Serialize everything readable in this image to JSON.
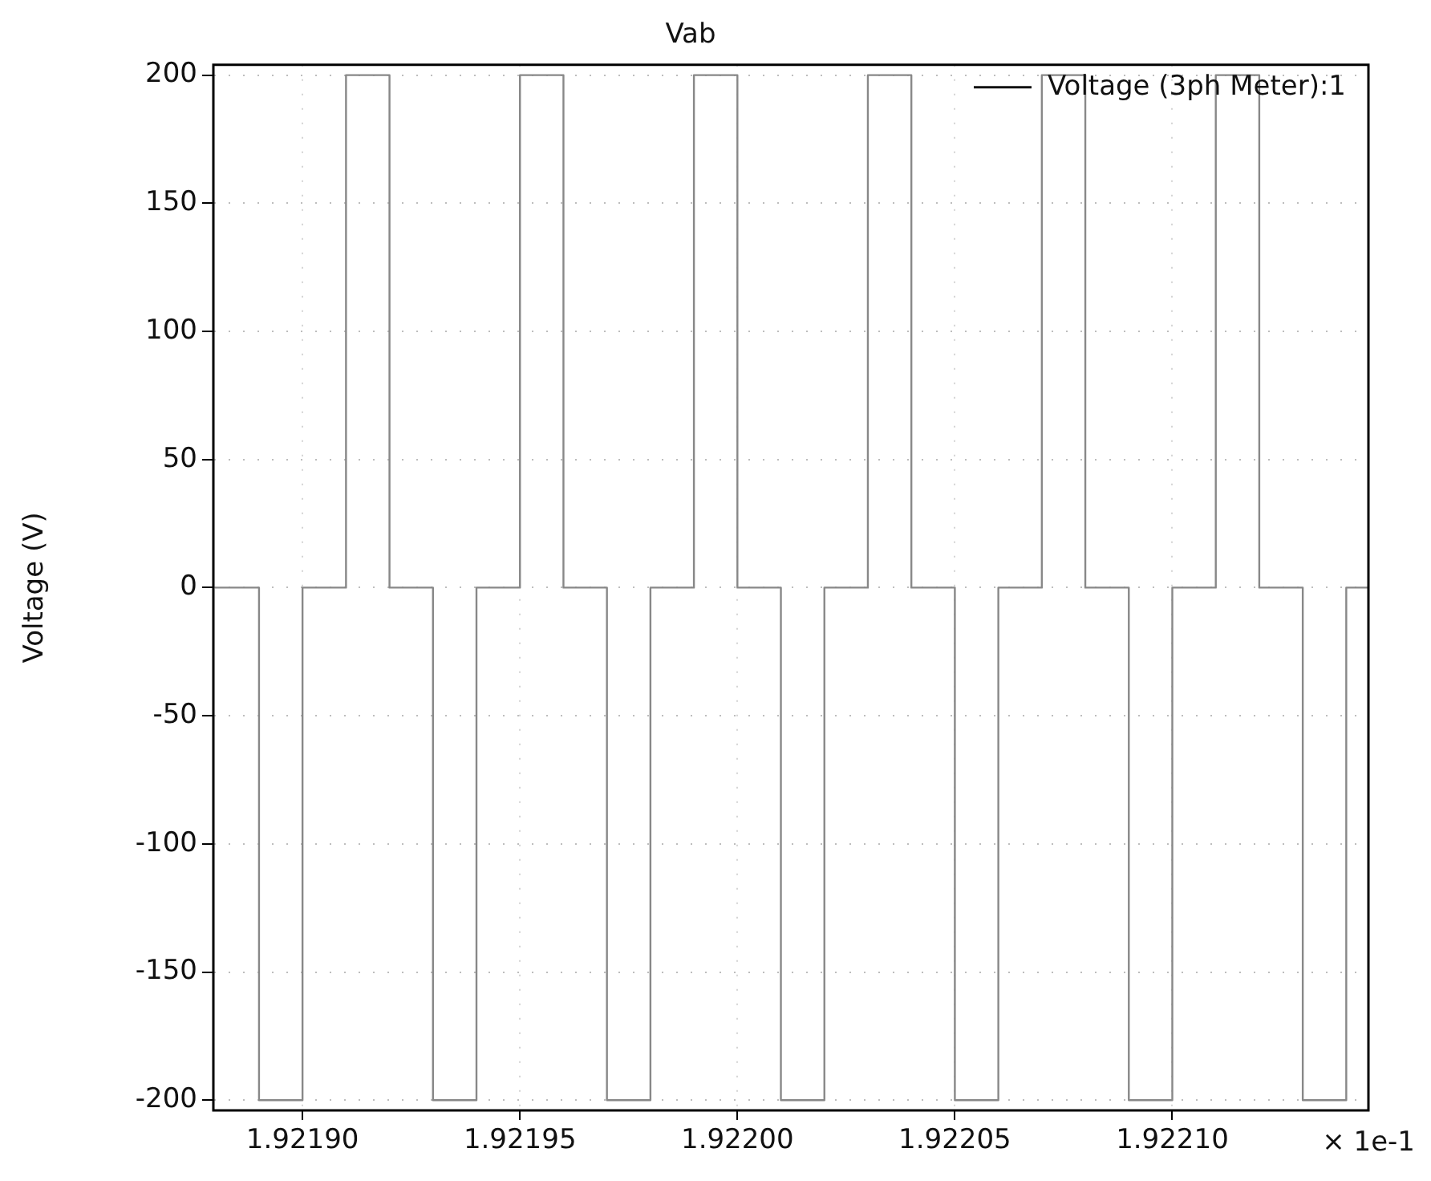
{
  "chart_data": {
    "type": "step",
    "title": "Vab",
    "ylabel": "Voltage (V)",
    "annotations": [
      "× 1e-1"
    ],
    "x": [
      1.92188,
      1.92189,
      1.9219,
      1.92191,
      1.92192,
      1.92193,
      1.92194,
      1.92195,
      1.92196,
      1.92197,
      1.92198,
      1.92199,
      1.922,
      1.92201,
      1.92202,
      1.92203,
      1.92204,
      1.92205,
      1.92206,
      1.92207,
      1.92208,
      1.92209,
      1.9221,
      1.92211,
      1.92212,
      1.92213,
      1.92214,
      1.922145
    ],
    "series": [
      {
        "name": "Voltage (3ph Meter):1",
        "color": "#888888",
        "values": [
          0,
          -200,
          0,
          200,
          0,
          -200,
          0,
          200,
          0,
          -200,
          0,
          200,
          0,
          -200,
          0,
          200,
          0,
          -200,
          0,
          200,
          0,
          -200,
          0,
          200,
          0,
          -200,
          0,
          0
        ]
      }
    ],
    "xlim": [
      1.9218795,
      1.9221451
    ],
    "ylim": [
      -204,
      204
    ],
    "xticks": [
      {
        "value": 1.9219,
        "label": "1.92190"
      },
      {
        "value": 1.92195,
        "label": "1.92195"
      },
      {
        "value": 1.922,
        "label": "1.92200"
      },
      {
        "value": 1.92205,
        "label": "1.92205"
      },
      {
        "value": 1.9221,
        "label": "1.92210"
      }
    ],
    "yticks": [
      -200,
      -150,
      -100,
      -50,
      0,
      50,
      100,
      150,
      200
    ],
    "grid": true,
    "legend": "top right",
    "marker": "none",
    "line_style": "solid"
  }
}
